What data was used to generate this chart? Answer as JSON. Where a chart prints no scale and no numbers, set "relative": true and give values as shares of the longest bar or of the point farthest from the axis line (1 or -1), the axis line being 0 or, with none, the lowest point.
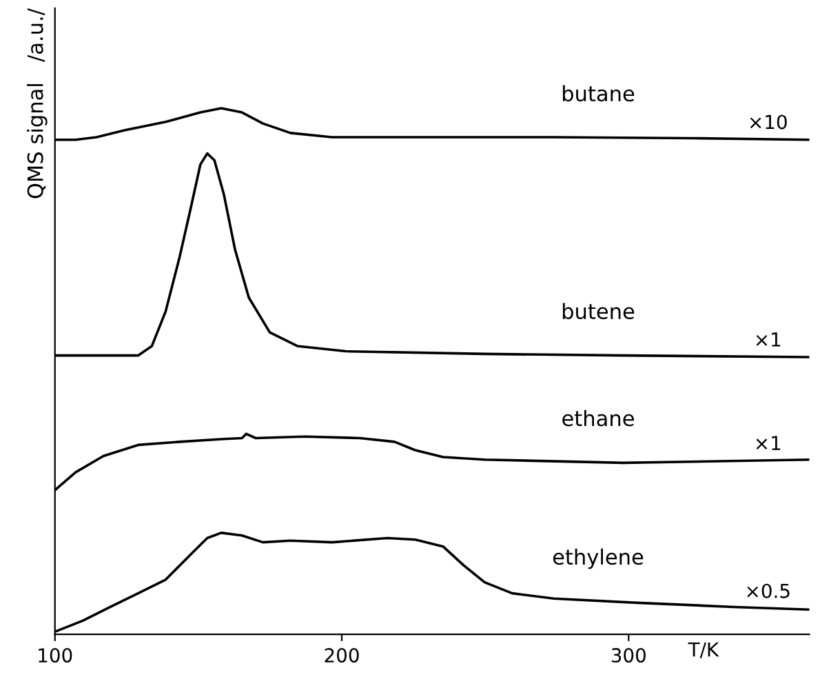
{
  "chart_data": {
    "type": "line",
    "relative": true,
    "ylabel": "QMS signal   /a.u./",
    "xlabel": "T/K",
    "xlim": [
      100,
      363
    ],
    "xticks": [
      100,
      200,
      300
    ],
    "grid": false,
    "legend": false,
    "marker": "none",
    "line_style": "solid",
    "tick_labels": "x",
    "series": [
      {
        "name": "butane",
        "color": "#000000",
        "x": [
          100,
          107.2,
          114.5,
          124.2,
          138.6,
          150.7,
          158.0,
          165.2,
          172.5,
          182.1,
          196.6,
          225.6,
          273.9,
          322.2,
          363
        ],
        "values": [
          0.94,
          0.94,
          0.945,
          0.958,
          0.974,
          0.992,
          1.0,
          0.992,
          0.971,
          0.953,
          0.945,
          0.945,
          0.945,
          0.943,
          0.94
        ]
      },
      {
        "name": "butene",
        "color": "#000000",
        "x": [
          100,
          129.0,
          133.8,
          138.6,
          143.5,
          147.3,
          150.7,
          153.1,
          155.6,
          158.9,
          162.8,
          167.6,
          174.9,
          184.5,
          201.4,
          249.8,
          298.1,
          363
        ],
        "values": [
          0.53,
          0.53,
          0.548,
          0.614,
          0.718,
          0.809,
          0.893,
          0.914,
          0.901,
          0.836,
          0.731,
          0.64,
          0.574,
          0.548,
          0.538,
          0.533,
          0.53,
          0.527
        ]
      },
      {
        "name": "ethane",
        "color": "#000000",
        "x": [
          100,
          107.2,
          116.9,
          129.0,
          143.5,
          158.0,
          165.2,
          166.7,
          170.0,
          187.0,
          206.3,
          218.4,
          225.6,
          235.3,
          249.8,
          298.1,
          363
        ],
        "values": [
          0.274,
          0.308,
          0.339,
          0.36,
          0.366,
          0.371,
          0.373,
          0.381,
          0.373,
          0.376,
          0.373,
          0.366,
          0.35,
          0.337,
          0.332,
          0.326,
          0.332
        ]
      },
      {
        "name": "ethylene",
        "color": "#000000",
        "x": [
          100,
          109.7,
          119.3,
          129.0,
          138.6,
          148.3,
          153.1,
          158.0,
          165.2,
          172.5,
          182.1,
          196.6,
          215.9,
          225.6,
          235.3,
          242.5,
          249.8,
          259.4,
          273.9,
          302.9,
          336.7,
          363
        ],
        "values": [
          0.005,
          0.026,
          0.052,
          0.078,
          0.104,
          0.157,
          0.183,
          0.193,
          0.188,
          0.175,
          0.178,
          0.175,
          0.183,
          0.18,
          0.167,
          0.131,
          0.099,
          0.078,
          0.068,
          0.06,
          0.052,
          0.047
        ]
      }
    ],
    "annotations": [
      "×10",
      "×1",
      "×1",
      "×0.5"
    ]
  }
}
